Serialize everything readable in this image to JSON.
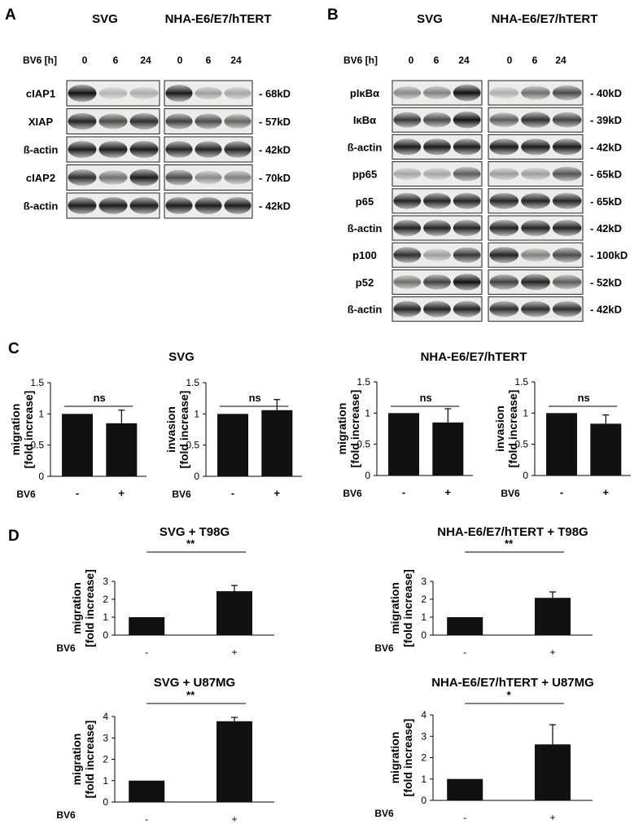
{
  "panel_a": {
    "letter": "A",
    "group1": "SVG",
    "group2": "NHA-E6/E7/hTERT",
    "time_label": "BV6 [h]",
    "times": [
      "0",
      "6",
      "24"
    ],
    "blots": [
      {
        "protein": "cIAP1",
        "size": "- 68kD",
        "intensity": [
          [
            1,
            0.12,
            0.18
          ],
          [
            0.95,
            0.25,
            0.2
          ]
        ]
      },
      {
        "protein": "XIAP",
        "size": "- 57kD",
        "intensity": [
          [
            0.9,
            0.7,
            0.85
          ],
          [
            0.75,
            0.7,
            0.55
          ]
        ]
      },
      {
        "protein": "ß-actin",
        "size": "- 42kD",
        "intensity": [
          [
            0.95,
            0.95,
            0.95
          ],
          [
            0.9,
            0.9,
            0.9
          ]
        ]
      },
      {
        "protein": "cIAP2",
        "size": "- 70kD",
        "intensity": [
          [
            0.85,
            0.5,
            0.95
          ],
          [
            0.7,
            0.35,
            0.4
          ]
        ]
      },
      {
        "protein": "ß-actin",
        "size": "- 42kD",
        "intensity": [
          [
            0.95,
            0.95,
            0.95
          ],
          [
            0.95,
            0.95,
            0.95
          ]
        ]
      }
    ]
  },
  "panel_b": {
    "letter": "B",
    "group1": "SVG",
    "group2": "NHA-E6/E7/hTERT",
    "time_label": "BV6 [h]",
    "times": [
      "0",
      "6",
      "24"
    ],
    "blots": [
      {
        "protein": "pIκBα",
        "size": "- 40kD",
        "intensity": [
          [
            0.35,
            0.4,
            1
          ],
          [
            0.15,
            0.5,
            0.7
          ]
        ]
      },
      {
        "protein": "IκBα",
        "size": "- 39kD",
        "intensity": [
          [
            0.8,
            0.7,
            1
          ],
          [
            0.6,
            0.85,
            0.75
          ]
        ]
      },
      {
        "protein": "ß-actin",
        "size": "- 42kD",
        "intensity": [
          [
            0.95,
            0.95,
            0.95
          ],
          [
            0.95,
            0.95,
            0.95
          ]
        ]
      },
      {
        "protein": "pp65",
        "size": "- 65kD",
        "intensity": [
          [
            0.2,
            0.2,
            0.6
          ],
          [
            0.25,
            0.25,
            0.65
          ]
        ]
      },
      {
        "protein": "p65",
        "size": "- 65kD",
        "intensity": [
          [
            0.9,
            0.9,
            0.9
          ],
          [
            0.9,
            0.9,
            0.9
          ]
        ]
      },
      {
        "protein": "ß-actin",
        "size": "- 42kD",
        "intensity": [
          [
            0.9,
            0.9,
            0.9
          ],
          [
            0.9,
            0.9,
            0.9
          ]
        ]
      },
      {
        "protein": "p100",
        "size": "- 100kD",
        "intensity": [
          [
            0.85,
            0.25,
            0.8
          ],
          [
            0.9,
            0.4,
            0.7
          ]
        ]
      },
      {
        "protein": "p52",
        "size": "- 52kD",
        "intensity": [
          [
            0.5,
            0.75,
            1
          ],
          [
            0.75,
            0.9,
            0.6
          ]
        ]
      },
      {
        "protein": "ß-actin",
        "size": "- 42kD",
        "intensity": [
          [
            0.9,
            0.9,
            0.9
          ],
          [
            0.85,
            0.85,
            0.85
          ]
        ]
      }
    ]
  },
  "panel_c": {
    "letter": "C",
    "title_svg": "SVG",
    "title_nha": "NHA-E6/E7/hTERT",
    "sig": "ns",
    "bv6_label": "BV6",
    "categories": [
      "-",
      "+"
    ]
  },
  "panel_d": {
    "letter": "D",
    "sigs": [
      "**",
      "**",
      "**",
      "*"
    ],
    "bv6_label": "BV6",
    "categories": [
      "-",
      "+"
    ]
  },
  "chart_data": [
    {
      "type": "bar",
      "title": "SVG",
      "ylabel": "migration\n[fold increase]",
      "xlabel": "BV6",
      "categories": [
        "-",
        "+"
      ],
      "values": [
        1.0,
        0.85
      ],
      "errors": [
        0,
        0.21
      ],
      "ylim": [
        0,
        1.5
      ],
      "yticks": [
        "0",
        "0.5",
        "1",
        "1.5"
      ],
      "annotation": "ns"
    },
    {
      "type": "bar",
      "title": "SVG",
      "ylabel": "invasion\n[fold increase]",
      "xlabel": "BV6",
      "categories": [
        "-",
        "+"
      ],
      "values": [
        1.0,
        1.06
      ],
      "errors": [
        0,
        0.17
      ],
      "ylim": [
        0,
        1.5
      ],
      "yticks": [
        "0",
        "0.5",
        "1",
        "1.5"
      ],
      "annotation": "ns"
    },
    {
      "type": "bar",
      "title": "NHA-E6/E7/hTERT",
      "ylabel": "migration\n[fold increase]",
      "xlabel": "BV6",
      "categories": [
        "-",
        "+"
      ],
      "values": [
        1.0,
        0.85
      ],
      "errors": [
        0,
        0.22
      ],
      "ylim": [
        0,
        1.5
      ],
      "yticks": [
        "0",
        "0.5",
        "1",
        "1.5"
      ],
      "annotation": "ns"
    },
    {
      "type": "bar",
      "title": "NHA-E6/E7/hTERT",
      "ylabel": "invasion\n[fold increase]",
      "xlabel": "BV6",
      "categories": [
        "-",
        "+"
      ],
      "values": [
        1.0,
        0.83
      ],
      "errors": [
        0,
        0.14
      ],
      "ylim": [
        0,
        1.5
      ],
      "yticks": [
        "0",
        "0.5",
        "1",
        "1.5"
      ],
      "annotation": "ns"
    },
    {
      "type": "bar",
      "title": "SVG + T98G",
      "ylabel": "migration\n[fold increase]",
      "xlabel": "BV6",
      "categories": [
        "-",
        "+"
      ],
      "values": [
        1.0,
        2.45
      ],
      "errors": [
        0,
        0.32
      ],
      "ylim": [
        0,
        3
      ],
      "yticks": [
        "0",
        "1",
        "2",
        "3"
      ],
      "annotation": "**"
    },
    {
      "type": "bar",
      "title": "NHA-E6/E7/hTERT + T98G",
      "ylabel": "migration\n[fold increase]",
      "xlabel": "BV6",
      "categories": [
        "-",
        "+"
      ],
      "values": [
        1.0,
        2.08
      ],
      "errors": [
        0,
        0.33
      ],
      "ylim": [
        0,
        3
      ],
      "yticks": [
        "0",
        "1",
        "2",
        "3"
      ],
      "annotation": "**"
    },
    {
      "type": "bar",
      "title": "SVG + U87MG",
      "ylabel": "migration\n[fold increase]",
      "xlabel": "BV6",
      "categories": [
        "-",
        "+"
      ],
      "values": [
        1.0,
        3.78
      ],
      "errors": [
        0,
        0.18
      ],
      "ylim": [
        0,
        4
      ],
      "yticks": [
        "0",
        "1",
        "2",
        "3",
        "4"
      ],
      "annotation": "**"
    },
    {
      "type": "bar",
      "title": "NHA-E6/E7/hTERT + U87MG",
      "ylabel": "migration\n[fold increase]",
      "xlabel": "BV6",
      "categories": [
        "-",
        "+"
      ],
      "values": [
        1.0,
        2.62
      ],
      "errors": [
        0,
        0.92
      ],
      "ylim": [
        0,
        4
      ],
      "yticks": [
        "0",
        "1",
        "2",
        "3",
        "4"
      ],
      "annotation": "*"
    }
  ]
}
